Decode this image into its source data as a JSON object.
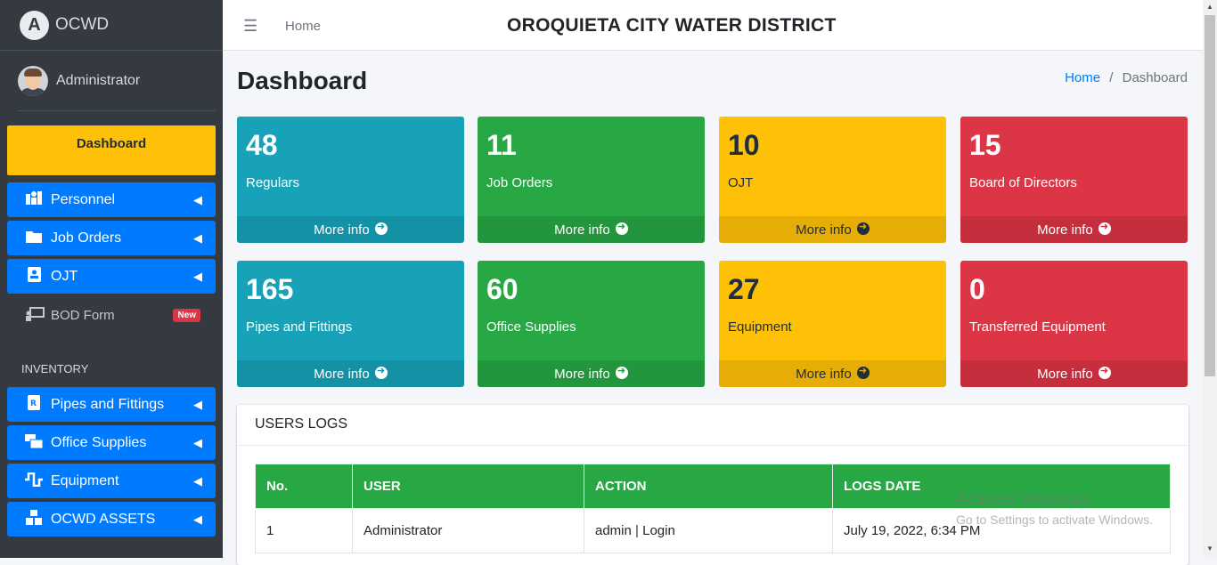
{
  "brand": {
    "logo": "A",
    "name": "OCWD"
  },
  "user": {
    "name": "Administrator"
  },
  "sidebar": {
    "dashboard": "Dashboard",
    "items": [
      {
        "label": "Personnel",
        "icon": "personnel-icon"
      },
      {
        "label": "Job Orders",
        "icon": "folder-icon"
      },
      {
        "label": "OJT",
        "icon": "id-card-icon"
      }
    ],
    "bod": {
      "label": "BOD Form",
      "badge": "New"
    },
    "inventory_header": "INVENTORY",
    "inventory": [
      {
        "label": "Pipes and Fittings"
      },
      {
        "label": "Office Supplies"
      },
      {
        "label": "Equipment"
      },
      {
        "label": "OCWD ASSETS"
      }
    ]
  },
  "topbar": {
    "home": "Home",
    "title": "OROQUIETA CITY WATER DISTRICT"
  },
  "page": {
    "title": "Dashboard",
    "breadcrumb": {
      "home": "Home",
      "sep": "/",
      "current": "Dashboard"
    }
  },
  "cards": [
    {
      "value": "48",
      "label": "Regulars",
      "more": "More info"
    },
    {
      "value": "11",
      "label": "Job Orders",
      "more": "More info"
    },
    {
      "value": "10",
      "label": "OJT",
      "more": "More info"
    },
    {
      "value": "15",
      "label": "Board of Directors",
      "more": "More info"
    },
    {
      "value": "165",
      "label": "Pipes and Fittings",
      "more": "More info"
    },
    {
      "value": "60",
      "label": "Office Supplies",
      "more": "More info"
    },
    {
      "value": "27",
      "label": "Equipment",
      "more": "More info"
    },
    {
      "value": "0",
      "label": "Transferred Equipment",
      "more": "More info"
    }
  ],
  "logs": {
    "title": "USERS LOGS",
    "columns": [
      "No.",
      "USER",
      "ACTION",
      "LOGS DATE"
    ],
    "rows": [
      {
        "no": "1",
        "user": "Administrator",
        "action_user": "admin",
        "action_sep": "|",
        "action": "Login",
        "date": "July 19, 2022, 6:34 PM"
      }
    ]
  },
  "watermark": {
    "line1": "Activate Windows",
    "line2": "Go to Settings to activate Windows."
  },
  "colors": {
    "info": "#17a2b8",
    "success": "#28a745",
    "warning": "#ffc107",
    "danger": "#dc3545",
    "primary": "#007bff",
    "sidebar": "#343a40"
  }
}
